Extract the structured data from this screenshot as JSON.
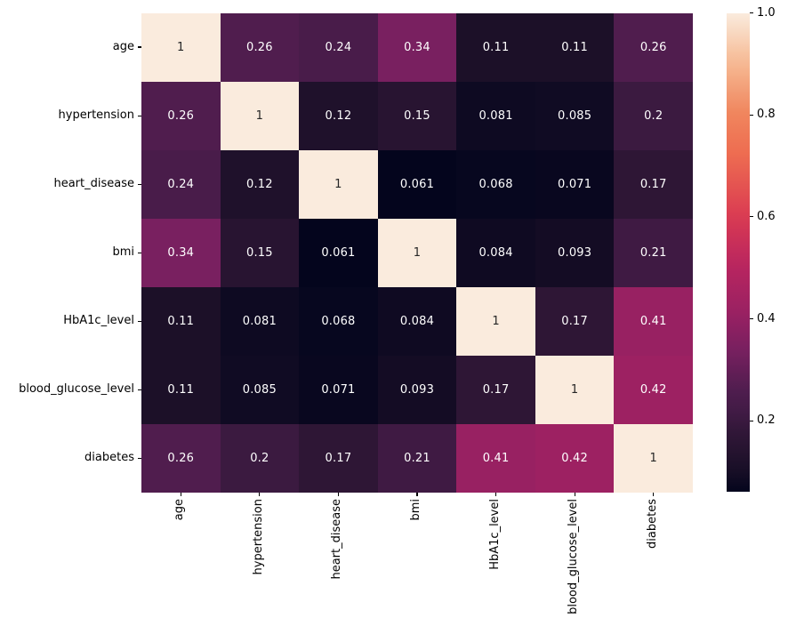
{
  "figure": {
    "background": "#ffffff",
    "tick_color": "#000000",
    "annotation_light": "#ffffff",
    "annotation_dark": "#262626"
  },
  "chart_data": {
    "type": "heatmap",
    "title": "",
    "colormap": "rocket",
    "vmin": 0.061,
    "vmax": 1.0,
    "grid": false,
    "legend_position": "colorbar-right",
    "categories": [
      "age",
      "hypertension",
      "heart_disease",
      "bmi",
      "HbA1c_level",
      "blood_glucose_level",
      "diabetes"
    ],
    "matrix_display": [
      [
        "1",
        "0.26",
        "0.24",
        "0.34",
        "0.11",
        "0.11",
        "0.26"
      ],
      [
        "0.26",
        "1",
        "0.12",
        "0.15",
        "0.081",
        "0.085",
        "0.2"
      ],
      [
        "0.24",
        "0.12",
        "1",
        "0.061",
        "0.068",
        "0.071",
        "0.17"
      ],
      [
        "0.34",
        "0.15",
        "0.061",
        "1",
        "0.084",
        "0.093",
        "0.21"
      ],
      [
        "0.11",
        "0.081",
        "0.068",
        "0.084",
        "1",
        "0.17",
        "0.41"
      ],
      [
        "0.11",
        "0.085",
        "0.071",
        "0.093",
        "0.17",
        "1",
        "0.42"
      ],
      [
        "0.26",
        "0.2",
        "0.17",
        "0.21",
        "0.41",
        "0.42",
        "1"
      ]
    ],
    "colorbar_ticks": [
      {
        "value": 1.0,
        "label": "1.0"
      },
      {
        "value": 0.8,
        "label": "0.8"
      },
      {
        "value": 0.6,
        "label": "0.6"
      },
      {
        "value": 0.4,
        "label": "0.4"
      },
      {
        "value": 0.2,
        "label": "0.2"
      }
    ],
    "colormap_stops": [
      [
        0.0,
        "#04051d"
      ],
      [
        0.05,
        "#1b1028"
      ],
      [
        0.12,
        "#2f1636"
      ],
      [
        0.15,
        "#3c1a41"
      ],
      [
        0.21,
        "#4f1d4e"
      ],
      [
        0.3,
        "#7a2061"
      ],
      [
        0.38,
        "#9c2162"
      ],
      [
        0.47,
        "#b82560"
      ],
      [
        0.574,
        "#d93a52"
      ],
      [
        0.7,
        "#ee6b50"
      ],
      [
        0.79,
        "#f0855d"
      ],
      [
        0.9,
        "#f6bb95"
      ],
      [
        1.0,
        "#faebdd"
      ]
    ]
  }
}
